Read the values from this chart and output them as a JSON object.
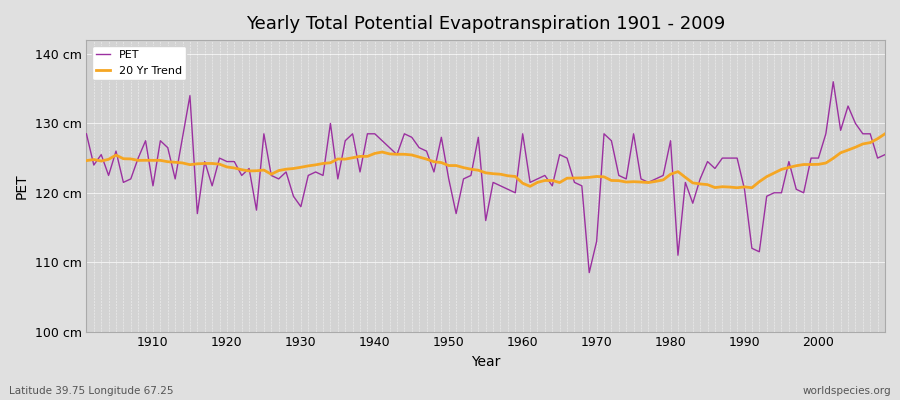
{
  "title": "Yearly Total Potential Evapotranspiration 1901 - 2009",
  "xlabel": "Year",
  "ylabel": "PET",
  "footnote_left": "Latitude 39.75 Longitude 67.25",
  "footnote_right": "worldspecies.org",
  "ylim": [
    100,
    142
  ],
  "yticks": [
    100,
    110,
    120,
    130,
    140
  ],
  "ytick_labels": [
    "100 cm",
    "110 cm",
    "120 cm",
    "130 cm",
    "140 cm"
  ],
  "xlim": [
    1901,
    2009
  ],
  "xticks": [
    1910,
    1920,
    1930,
    1940,
    1950,
    1960,
    1970,
    1980,
    1990,
    2000
  ],
  "pet_color": "#9b30a0",
  "trend_color": "#f5a623",
  "bg_color": "#e0e0e0",
  "plot_bg_color": "#d3d3d3",
  "grid_color": "#ffffff",
  "pet_data": {
    "1901": 128.5,
    "1902": 124.0,
    "1903": 125.5,
    "1904": 122.5,
    "1905": 126.0,
    "1906": 121.5,
    "1907": 122.0,
    "1908": 125.0,
    "1909": 127.5,
    "1910": 121.0,
    "1911": 127.5,
    "1912": 126.5,
    "1913": 122.0,
    "1914": 128.0,
    "1915": 134.0,
    "1916": 117.0,
    "1917": 124.5,
    "1918": 121.0,
    "1919": 125.0,
    "1920": 124.5,
    "1921": 124.5,
    "1922": 122.5,
    "1923": 123.5,
    "1924": 117.5,
    "1925": 128.5,
    "1926": 122.5,
    "1927": 122.0,
    "1928": 123.0,
    "1929": 119.5,
    "1930": 118.0,
    "1931": 122.5,
    "1932": 123.0,
    "1933": 122.5,
    "1934": 130.0,
    "1935": 122.0,
    "1936": 127.5,
    "1937": 128.5,
    "1938": 123.0,
    "1939": 128.5,
    "1940": 128.5,
    "1941": 127.5,
    "1942": 126.5,
    "1943": 125.5,
    "1944": 128.5,
    "1945": 128.0,
    "1946": 126.5,
    "1947": 126.0,
    "1948": 123.0,
    "1949": 128.0,
    "1950": 122.0,
    "1951": 117.0,
    "1952": 122.0,
    "1953": 122.5,
    "1954": 128.0,
    "1955": 116.0,
    "1956": 121.5,
    "1957": 121.0,
    "1958": 120.5,
    "1959": 120.0,
    "1960": 128.5,
    "1961": 121.5,
    "1962": 122.0,
    "1963": 122.5,
    "1964": 121.0,
    "1965": 125.5,
    "1966": 125.0,
    "1967": 121.5,
    "1968": 121.0,
    "1969": 108.5,
    "1970": 113.0,
    "1971": 128.5,
    "1972": 127.5,
    "1973": 122.5,
    "1974": 122.0,
    "1975": 128.5,
    "1976": 122.0,
    "1977": 121.5,
    "1978": 122.0,
    "1979": 122.5,
    "1980": 127.5,
    "1981": 111.0,
    "1982": 121.5,
    "1983": 118.5,
    "1984": 122.0,
    "1985": 124.5,
    "1986": 123.5,
    "1987": 125.0,
    "1988": 125.0,
    "1989": 125.0,
    "1990": 120.5,
    "1991": 112.0,
    "1992": 111.5,
    "1993": 119.5,
    "1994": 120.0,
    "1995": 120.0,
    "1996": 124.5,
    "1997": 120.5,
    "1998": 120.0,
    "1999": 125.0,
    "2000": 125.0,
    "2001": 128.5,
    "2002": 136.0,
    "2003": 129.0,
    "2004": 132.5,
    "2005": 130.0,
    "2006": 128.5,
    "2007": 128.5,
    "2008": 125.0,
    "2009": 125.5
  }
}
